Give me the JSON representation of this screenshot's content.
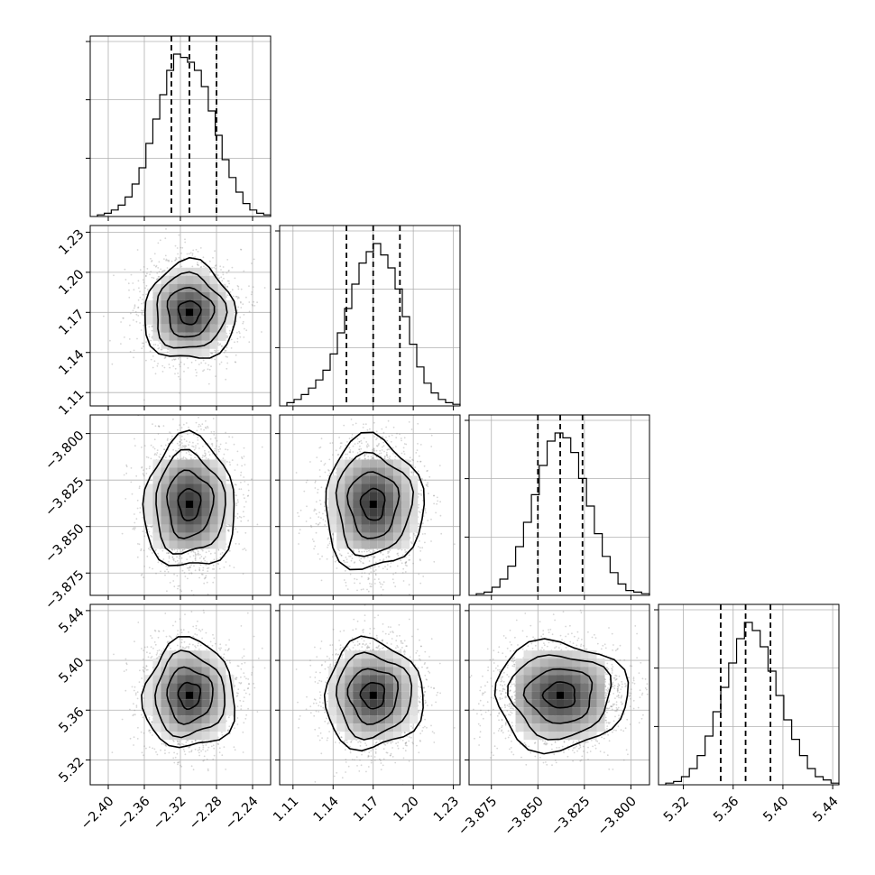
{
  "chart_data": {
    "type": "corner",
    "parameters": [
      {
        "range": [
          -2.42,
          -2.22
        ],
        "ticks": [
          -2.4,
          -2.36,
          -2.32,
          -2.28,
          -2.24
        ],
        "tick_labels": [
          "−2.40",
          "−2.36",
          "−2.32",
          "−2.28",
          "−2.24"
        ],
        "quantiles": [
          -2.33,
          -2.31,
          -2.28
        ],
        "histogram": [
          0.01,
          0.02,
          0.04,
          0.07,
          0.12,
          0.2,
          0.3,
          0.45,
          0.6,
          0.75,
          0.9,
          1.0,
          0.98,
          0.95,
          0.9,
          0.8,
          0.65,
          0.5,
          0.35,
          0.24,
          0.15,
          0.08,
          0.04,
          0.02,
          0.01
        ]
      },
      {
        "range": [
          1.1,
          1.235
        ],
        "ticks": [
          1.11,
          1.14,
          1.17,
          1.2,
          1.23
        ],
        "tick_labels": [
          "1.11",
          "1.14",
          "1.17",
          "1.20",
          "1.23"
        ],
        "quantiles": [
          1.15,
          1.17,
          1.19
        ],
        "histogram": [
          0.02,
          0.04,
          0.07,
          0.11,
          0.16,
          0.22,
          0.32,
          0.45,
          0.6,
          0.75,
          0.88,
          0.95,
          1.0,
          0.93,
          0.85,
          0.72,
          0.55,
          0.38,
          0.24,
          0.14,
          0.08,
          0.04,
          0.02,
          0.01
        ]
      },
      {
        "range": [
          -3.887,
          -3.79
        ],
        "ticks": [
          -3.875,
          -3.85,
          -3.825,
          -3.8
        ],
        "tick_labels": [
          "−3.875",
          "−3.850",
          "−3.825",
          "−3.800"
        ],
        "quantiles": [
          -3.85,
          -3.838,
          -3.826
        ],
        "histogram": [
          0.01,
          0.02,
          0.05,
          0.1,
          0.18,
          0.3,
          0.45,
          0.62,
          0.8,
          0.95,
          1.0,
          0.97,
          0.88,
          0.72,
          0.55,
          0.38,
          0.24,
          0.14,
          0.07,
          0.03,
          0.02,
          0.01
        ]
      },
      {
        "range": [
          5.3,
          5.445
        ],
        "ticks": [
          5.32,
          5.36,
          5.4,
          5.44
        ],
        "tick_labels": [
          "5.32",
          "5.36",
          "5.40",
          "5.44"
        ],
        "quantiles": [
          5.35,
          5.37,
          5.39
        ],
        "histogram": [
          0.01,
          0.02,
          0.05,
          0.1,
          0.18,
          0.3,
          0.45,
          0.6,
          0.75,
          0.9,
          1.0,
          0.95,
          0.85,
          0.7,
          0.55,
          0.4,
          0.28,
          0.18,
          0.1,
          0.05,
          0.03,
          0.01
        ]
      }
    ],
    "centers": [
      -2.31,
      1.17,
      -3.838,
      5.372
    ],
    "sigmas": [
      0.022,
      0.016,
      0.0155,
      0.019
    ],
    "axis_labels": [
      "",
      "",
      "",
      ""
    ],
    "grid": true
  }
}
